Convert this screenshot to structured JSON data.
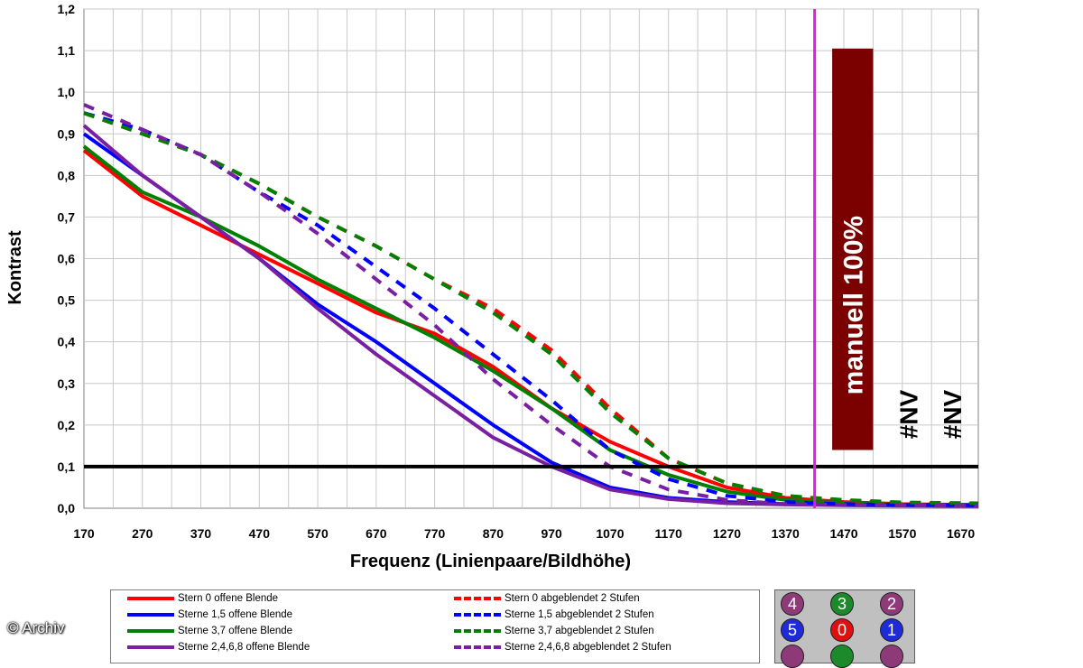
{
  "chart_data": {
    "type": "line",
    "title": "",
    "xlabel": "Frequenz (Linienpaare/Bildhöhe)",
    "ylabel": "Kontrast",
    "xlim": [
      170,
      1700
    ],
    "ylim": [
      0,
      1.2
    ],
    "x_ticks": [
      "170",
      "270",
      "370",
      "470",
      "570",
      "670",
      "770",
      "870",
      "970",
      "1070",
      "1170",
      "1270",
      "1370",
      "1470",
      "1570",
      "1670"
    ],
    "y_ticks": [
      "0,0",
      "0,1",
      "0,2",
      "0,3",
      "0,4",
      "0,5",
      "0,6",
      "0,7",
      "0,8",
      "0,9",
      "1,0",
      "1,1",
      "1,2"
    ],
    "grid": true,
    "legend_position": "bottom",
    "reference_line": {
      "y": 0.1,
      "color": "#000000"
    },
    "vertical_marker": {
      "x": 1420,
      "color": "#e01ce0"
    },
    "bar": {
      "x_start": 1450,
      "x_end": 1520,
      "y_bottom": 0.14,
      "y_top": 1.105,
      "color": "#7b0000",
      "label": "manuell 100%"
    },
    "annotations": [
      {
        "text": "#NV",
        "x": 1580,
        "y": 0.16
      },
      {
        "text": "#NV",
        "x": 1655,
        "y": 0.16
      }
    ],
    "series": [
      {
        "name": "Stern 0 offene Blende",
        "color": "#ff0000",
        "dash": false,
        "x": [
          170,
          270,
          370,
          470,
          570,
          670,
          770,
          870,
          970,
          1070,
          1170,
          1270,
          1370,
          1470,
          1570,
          1700
        ],
        "y": [
          0.86,
          0.75,
          0.68,
          0.61,
          0.54,
          0.47,
          0.42,
          0.34,
          0.24,
          0.16,
          0.1,
          0.05,
          0.025,
          0.015,
          0.01,
          0.008
        ]
      },
      {
        "name": "Sterne 1,5 offene Blende",
        "color": "#0000ff",
        "dash": false,
        "x": [
          170,
          270,
          370,
          470,
          570,
          670,
          770,
          870,
          970,
          1070,
          1170,
          1270,
          1370,
          1470,
          1570,
          1700
        ],
        "y": [
          0.9,
          0.8,
          0.7,
          0.6,
          0.49,
          0.4,
          0.3,
          0.2,
          0.11,
          0.05,
          0.025,
          0.015,
          0.01,
          0.008,
          0.007,
          0.006
        ]
      },
      {
        "name": "Sterne 3,7 offene Blende",
        "color": "#008000",
        "dash": false,
        "x": [
          170,
          270,
          370,
          470,
          570,
          670,
          770,
          870,
          970,
          1070,
          1170,
          1270,
          1370,
          1470,
          1570,
          1700
        ],
        "y": [
          0.87,
          0.76,
          0.7,
          0.63,
          0.55,
          0.48,
          0.41,
          0.33,
          0.24,
          0.14,
          0.08,
          0.04,
          0.02,
          0.012,
          0.009,
          0.008
        ]
      },
      {
        "name": "Sterne 2,4,6,8 offene Blende",
        "color": "#7b1fa2",
        "dash": false,
        "x": [
          170,
          270,
          370,
          470,
          570,
          670,
          770,
          870,
          970,
          1070,
          1170,
          1270,
          1370,
          1470,
          1570,
          1700
        ],
        "y": [
          0.92,
          0.8,
          0.7,
          0.6,
          0.48,
          0.37,
          0.27,
          0.17,
          0.1,
          0.045,
          0.022,
          0.012,
          0.009,
          0.007,
          0.006,
          0.005
        ]
      },
      {
        "name": "Stern 0 abgeblendet 2 Stufen",
        "color": "#ff0000",
        "dash": true,
        "x": [
          170,
          270,
          370,
          470,
          570,
          670,
          770,
          870,
          970,
          1070,
          1170,
          1270,
          1370,
          1470,
          1570,
          1700
        ],
        "y": [
          0.95,
          0.9,
          0.85,
          0.78,
          0.7,
          0.63,
          0.55,
          0.48,
          0.38,
          0.24,
          0.12,
          0.06,
          0.03,
          0.018,
          0.012,
          0.01
        ]
      },
      {
        "name": "Sterne 1,5 abgeblendet 2 Stufen",
        "color": "#0000ff",
        "dash": true,
        "x": [
          170,
          270,
          370,
          470,
          570,
          670,
          770,
          870,
          970,
          1070,
          1170,
          1270,
          1370,
          1470,
          1570,
          1700
        ],
        "y": [
          0.95,
          0.91,
          0.85,
          0.76,
          0.68,
          0.58,
          0.48,
          0.37,
          0.26,
          0.14,
          0.07,
          0.03,
          0.015,
          0.01,
          0.008,
          0.007
        ]
      },
      {
        "name": "Sterne 3,7 abgeblendet 2 Stufen",
        "color": "#008000",
        "dash": true,
        "x": [
          170,
          270,
          370,
          470,
          570,
          670,
          770,
          870,
          970,
          1070,
          1170,
          1270,
          1370,
          1470,
          1570,
          1700
        ],
        "y": [
          0.95,
          0.9,
          0.85,
          0.78,
          0.7,
          0.63,
          0.55,
          0.47,
          0.37,
          0.23,
          0.12,
          0.06,
          0.03,
          0.02,
          0.014,
          0.012
        ]
      },
      {
        "name": "Sterne 2,4,6,8 abgeblendet 2 Stufen",
        "color": "#7b1fa2",
        "dash": true,
        "x": [
          170,
          270,
          370,
          470,
          570,
          670,
          770,
          870,
          970,
          1070,
          1170,
          1270,
          1370,
          1470,
          1570,
          1700
        ],
        "y": [
          0.97,
          0.91,
          0.85,
          0.76,
          0.66,
          0.55,
          0.44,
          0.31,
          0.2,
          0.1,
          0.045,
          0.02,
          0.01,
          0.008,
          0.007,
          0.006
        ]
      }
    ]
  },
  "sensor_map": {
    "rows": [
      [
        {
          "label": "4",
          "color": "#8e3a78"
        },
        {
          "label": "3",
          "color": "#1c8a2a"
        },
        {
          "label": "2",
          "color": "#8e3a78"
        }
      ],
      [
        {
          "label": "5",
          "color": "#1f2ad8"
        },
        {
          "label": "0",
          "color": "#e01010"
        },
        {
          "label": "1",
          "color": "#1f2ad8"
        }
      ],
      [
        {
          "label": "",
          "color": "#8e3a78"
        },
        {
          "label": "",
          "color": "#1c8a2a"
        },
        {
          "label": "",
          "color": "#8e3a78"
        }
      ]
    ]
  },
  "credit": "© Archiv"
}
